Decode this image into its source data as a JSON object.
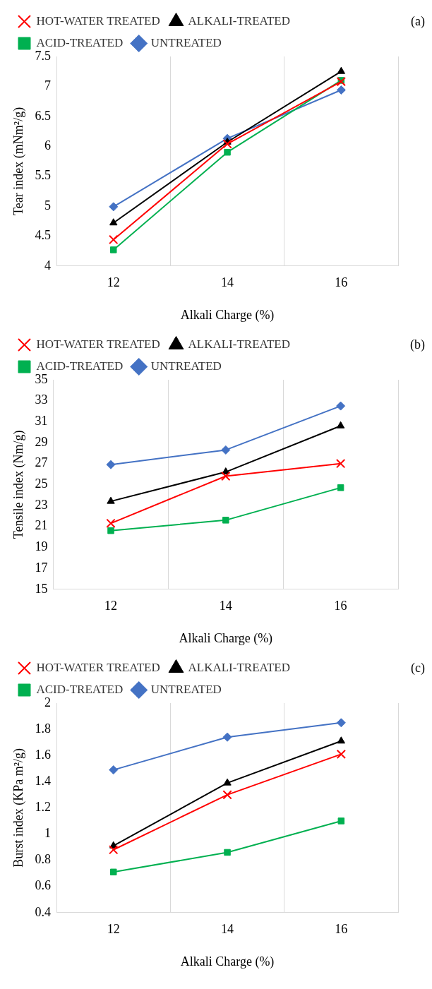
{
  "chart_data": [
    {
      "type": "line",
      "xlabel": "Alkali Charge (%)",
      "ylabel": "Tear index (mNm²/g)",
      "annotations": [
        "(a)"
      ],
      "categories": [
        "12",
        "14",
        "16"
      ],
      "ylim": [
        4,
        7.5
      ],
      "yticks": [
        4,
        4.5,
        5,
        5.5,
        6,
        6.5,
        7,
        7.5
      ],
      "grid": "x",
      "legend": "top",
      "series": [
        {
          "name": "UNTREATED",
          "color": "#4472c4",
          "marker": "diamond",
          "values": [
            4.99,
            6.13,
            6.94
          ]
        },
        {
          "name": "ACID-TREATED",
          "color": "#00b050",
          "marker": "square",
          "values": [
            4.27,
            5.9,
            7.1
          ]
        },
        {
          "name": "ALKALI-TREATED",
          "color": "#000000",
          "marker": "triangle",
          "values": [
            4.72,
            6.07,
            7.25
          ]
        },
        {
          "name": "HOT-WATER TREATED",
          "color": "#ff0000",
          "marker": "cross",
          "values": [
            4.44,
            6.04,
            7.08
          ]
        }
      ]
    },
    {
      "type": "line",
      "xlabel": "Alkali Charge (%)",
      "ylabel": "Tensile index (Nm/g)",
      "annotations": [
        "(b)"
      ],
      "categories": [
        "12",
        "14",
        "16"
      ],
      "ylim": [
        15,
        35
      ],
      "yticks": [
        15,
        17,
        19,
        21,
        23,
        25,
        27,
        29,
        31,
        33,
        35
      ],
      "grid": "x",
      "legend": "top",
      "series": [
        {
          "name": "UNTREATED",
          "color": "#4472c4",
          "marker": "diamond",
          "values": [
            26.9,
            28.3,
            32.5
          ]
        },
        {
          "name": "ACID-TREATED",
          "color": "#00b050",
          "marker": "square",
          "values": [
            20.6,
            21.6,
            24.7
          ]
        },
        {
          "name": "ALKALI-TREATED",
          "color": "#000000",
          "marker": "triangle",
          "values": [
            23.4,
            26.2,
            30.6
          ]
        },
        {
          "name": "HOT-WATER TREATED",
          "color": "#ff0000",
          "marker": "cross",
          "values": [
            21.3,
            25.8,
            27.0
          ]
        }
      ]
    },
    {
      "type": "line",
      "xlabel": "Alkali Charge (%)",
      "ylabel": "Burst index (KPa m²/g)",
      "annotations": [
        "(c)"
      ],
      "categories": [
        "12",
        "14",
        "16"
      ],
      "ylim": [
        0.4,
        2
      ],
      "yticks": [
        {
          "value": 0.4,
          "label": "0.4"
        },
        {
          "value": 0.6,
          "label": "0.6"
        },
        {
          "value": 0.8,
          "label": "0.8"
        },
        1,
        {
          "value": 1.2,
          "label": "1.2"
        },
        {
          "value": 1.4,
          "label": "1.4"
        },
        {
          "value": 1.6,
          "label": "1.6"
        },
        {
          "value": 1.8,
          "label": "1.8"
        },
        2
      ],
      "grid": "x",
      "legend": "top",
      "series": [
        {
          "name": "UNTREATED",
          "color": "#4472c4",
          "marker": "diamond",
          "values": [
            1.49,
            1.74,
            1.85
          ]
        },
        {
          "name": "ACID-TREATED",
          "color": "#00b050",
          "marker": "square",
          "values": [
            0.71,
            0.86,
            1.1
          ]
        },
        {
          "name": "ALKALI-TREATED",
          "color": "#000000",
          "marker": "triangle",
          "values": [
            0.91,
            1.39,
            1.71
          ]
        },
        {
          "name": "HOT-WATER TREATED",
          "color": "#ff0000",
          "marker": "cross",
          "values": [
            0.88,
            1.3,
            1.61
          ]
        }
      ]
    }
  ]
}
